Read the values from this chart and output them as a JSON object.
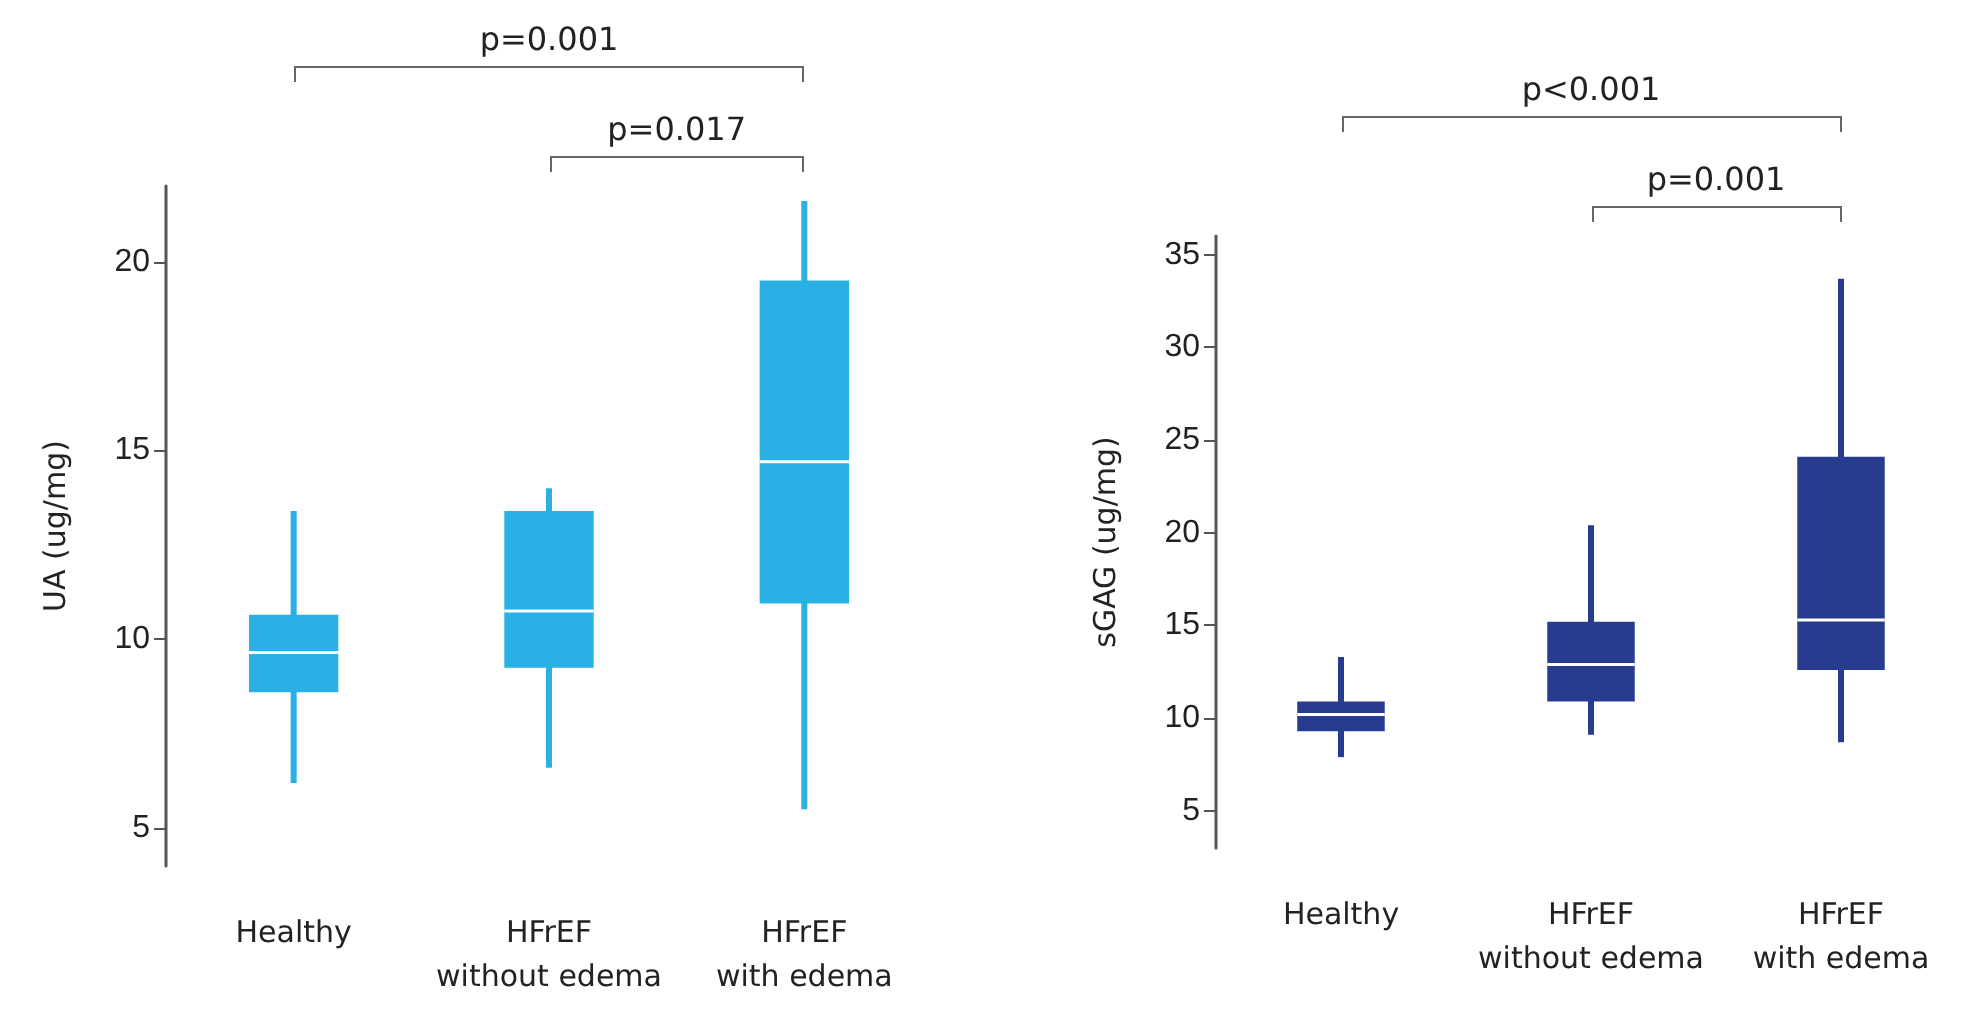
{
  "chart_data": [
    {
      "type": "box",
      "ylabel": "UA (ug/mg)",
      "categories": [
        "Healthy",
        "HFrEF\nwithout edema",
        "HFrEF\nwith edema"
      ],
      "ylim": [
        4,
        22
      ],
      "yticks": [
        5,
        10,
        15,
        20
      ],
      "grid": false,
      "color": "#29b0e4",
      "boxes": [
        {
          "low": 6.2,
          "q1": 8.6,
          "median": 9.65,
          "q3": 10.65,
          "high": 13.4
        },
        {
          "low": 6.6,
          "q1": 9.25,
          "median": 10.75,
          "q3": 13.4,
          "high": 14.0
        },
        {
          "low": 5.5,
          "q1": 10.95,
          "median": 14.7,
          "q3": 19.5,
          "high": 21.6
        }
      ],
      "annotations": [
        "p=0.017",
        "p=0.001"
      ]
    },
    {
      "type": "box",
      "ylabel": "sGAG (ug/mg)",
      "categories": [
        "Healthy",
        "HFrEF\nwithout edema",
        "HFrEF\nwith edema"
      ],
      "ylim": [
        3,
        36
      ],
      "yticks": [
        5,
        10,
        15,
        20,
        25,
        30,
        35
      ],
      "grid": false,
      "color": "#283c8f",
      "boxes": [
        {
          "low": 7.9,
          "q1": 9.3,
          "median": 10.2,
          "q3": 10.9,
          "high": 13.3
        },
        {
          "low": 9.1,
          "q1": 10.9,
          "median": 12.9,
          "q3": 15.2,
          "high": 20.4
        },
        {
          "low": 8.7,
          "q1": 12.6,
          "median": 15.3,
          "q3": 24.1,
          "high": 33.7
        }
      ],
      "annotations": [
        "p=0.001",
        "p<0.001"
      ]
    }
  ]
}
